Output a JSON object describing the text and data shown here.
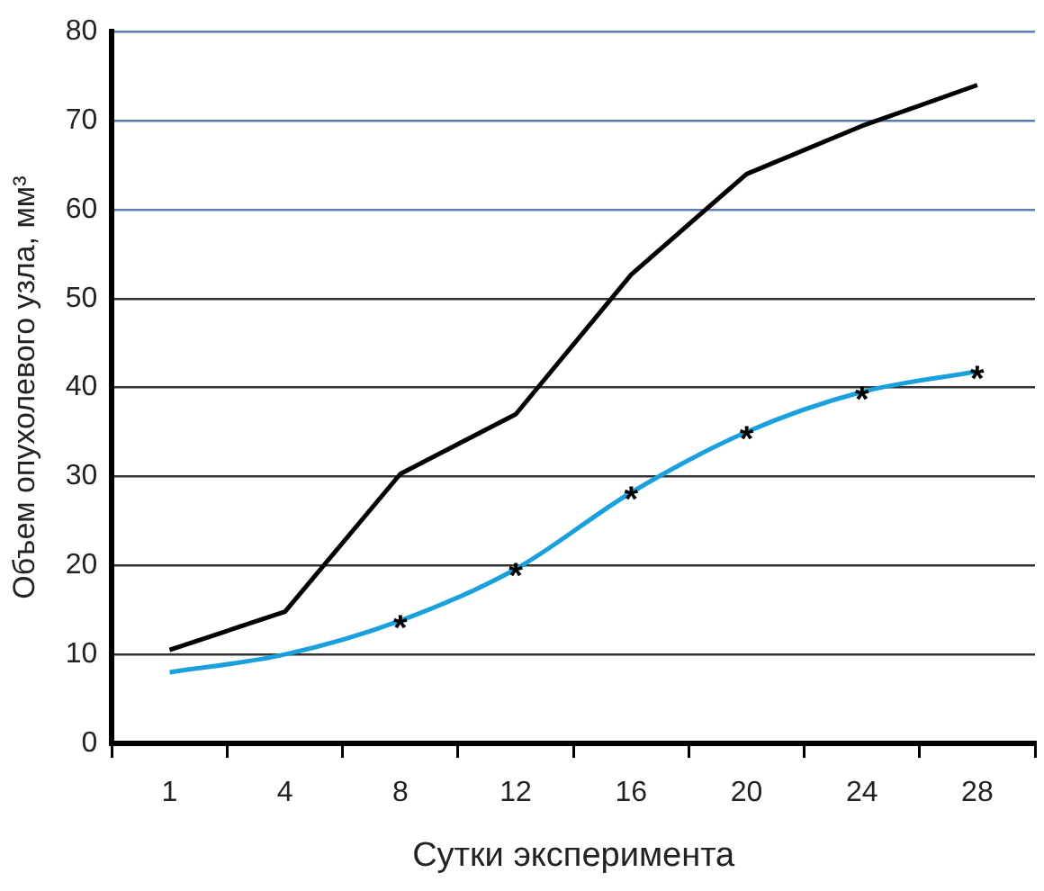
{
  "chart_data": {
    "type": "line",
    "xlabel": "Сутки эксперимента",
    "ylabel": "Объем опухолевого узла, мм³",
    "categories": [
      "1",
      "4",
      "8",
      "12",
      "16",
      "20",
      "24",
      "28"
    ],
    "series": [
      {
        "color": "#000000",
        "values": [
          10.5,
          14.8,
          30.3,
          37,
          52.7,
          64,
          69.4,
          74
        ]
      },
      {
        "color": "#1aa0dc",
        "values": [
          8,
          10,
          13.8,
          19.6,
          28.2,
          35,
          39.5,
          41.8
        ]
      }
    ],
    "annotations": [
      {
        "text": "*",
        "x": "8",
        "y": 13.8
      },
      {
        "text": "*",
        "x": "12",
        "y": 19.6
      },
      {
        "text": "*",
        "x": "16",
        "y": 28.2
      },
      {
        "text": "*",
        "x": "20",
        "y": 35
      },
      {
        "text": "*",
        "x": "24",
        "y": 39.5
      },
      {
        "text": "*",
        "x": "28",
        "y": 41.8
      }
    ],
    "ylim": [
      0,
      80
    ],
    "yticks": [
      0,
      10,
      20,
      30,
      40,
      50,
      60,
      70,
      80
    ],
    "grid": "y",
    "legend": false,
    "marker": "none",
    "line_style": "solid"
  }
}
